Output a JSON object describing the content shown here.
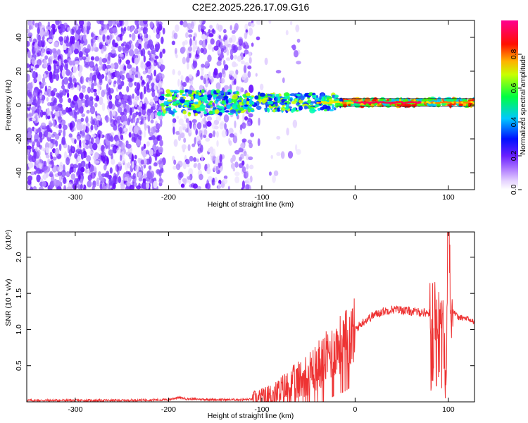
{
  "title": "C2E2.2025.226.17.09.G16",
  "chart_data": [
    {
      "type": "heatmap",
      "xlabel": "Height of straight line (km)",
      "ylabel": "Frequency (Hz)",
      "xlim": [
        -352,
        128
      ],
      "ylim": [
        -50,
        50
      ],
      "xticks": [
        -300,
        -200,
        -100,
        0,
        100
      ],
      "yticks": [
        -40,
        -20,
        0,
        20,
        40
      ],
      "colorbar": {
        "label": "Normalized spectral amplitude",
        "range": [
          0,
          1
        ],
        "ticks": [
          0.0,
          0.2,
          0.4,
          0.6,
          0.8
        ],
        "tick_labels": [
          "0.0",
          "0.2",
          "0.4",
          "0.6",
          "0.8"
        ],
        "colors": [
          "#ffffff",
          "#e8d8ff",
          "#b07cff",
          "#7a30ff",
          "#0000ff",
          "#00c8ff",
          "#00ff40",
          "#ffff00",
          "#ff6000",
          "#ff0000",
          "#ff0080"
        ]
      },
      "features": {
        "noise_region_x": [
          -352,
          -205
        ],
        "noise_gap_x": [
          -205,
          -180
        ],
        "noise_region2_x": [
          -180,
          -110
        ],
        "signal_start_x": -210,
        "signal_center_hz": 1.5,
        "strong_band_x": [
          -15,
          128
        ],
        "max_amplitude_x_range": [
          0,
          70
        ]
      }
    },
    {
      "type": "line",
      "xlabel": "Height of straight line (km)",
      "ylabel": "SNR (10 * v/v)",
      "yscale_label": "(x10⁴)",
      "xlim": [
        -352,
        128
      ],
      "ylim": [
        0,
        2.35
      ],
      "xticks": [
        -300,
        -200,
        -100,
        0,
        100
      ],
      "yticks": [
        0.5,
        1.0,
        1.5,
        2.0
      ],
      "ytick_labels": [
        "0.5",
        "1.0",
        "1.5",
        "2.0"
      ],
      "series": [
        {
          "color": "#ee3333",
          "x": [
            -352,
            -300,
            -250,
            -200,
            -190,
            -180,
            -150,
            -120,
            -100,
            -90,
            -80,
            -70,
            -60,
            -50,
            -40,
            -30,
            -20,
            -10,
            0,
            10,
            20,
            30,
            40,
            50,
            60,
            70,
            80,
            85,
            90,
            95,
            97,
            100,
            103,
            110,
            120,
            128
          ],
          "y": [
            0.02,
            0.02,
            0.02,
            0.03,
            0.06,
            0.04,
            0.03,
            0.03,
            0.04,
            0.08,
            0.15,
            0.22,
            0.3,
            0.4,
            0.5,
            0.62,
            0.75,
            0.85,
            1.0,
            1.12,
            1.2,
            1.25,
            1.28,
            1.27,
            1.25,
            1.24,
            1.23,
            1.2,
            1.35,
            1.1,
            0.2,
            2.3,
            1.3,
            1.17,
            1.15,
            1.1
          ]
        }
      ]
    }
  ]
}
